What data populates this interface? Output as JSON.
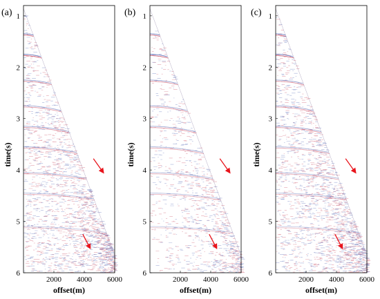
{
  "chart_data": [
    {
      "type": "seismic-section",
      "panel_label": "(a)",
      "xlabel": "offset(m)",
      "ylabel": "time(s)",
      "xlim": [
        0,
        6000
      ],
      "ylim": [
        6,
        0.8
      ],
      "xticks": [
        2000,
        4000,
        6000
      ],
      "yticks": [
        1,
        2,
        3,
        4,
        5,
        6
      ],
      "arrows": [
        {
          "from": [
            4600,
            3.78
          ],
          "to": [
            5250,
            4.05
          ],
          "color": "#e8141c"
        },
        {
          "from": [
            3900,
            5.25
          ],
          "to": [
            4380,
            5.52
          ],
          "color": "#e8141c"
        }
      ]
    },
    {
      "type": "seismic-section",
      "panel_label": "(b)",
      "xlabel": "offset(m)",
      "ylabel": "time(s)",
      "xlim": [
        0,
        6000
      ],
      "ylim": [
        6,
        0.8
      ],
      "xticks": [
        2000,
        4000,
        6000
      ],
      "yticks": [
        1,
        2,
        3,
        4,
        5,
        6
      ],
      "arrows": [
        {
          "from": [
            4600,
            3.78
          ],
          "to": [
            5250,
            4.05
          ],
          "color": "#e8141c"
        },
        {
          "from": [
            3900,
            5.25
          ],
          "to": [
            4380,
            5.52
          ],
          "color": "#e8141c"
        }
      ]
    },
    {
      "type": "seismic-section",
      "panel_label": "(c)",
      "xlabel": "offset(m)",
      "ylabel": "time(s)",
      "xlim": [
        0,
        6000
      ],
      "ylim": [
        6,
        0.8
      ],
      "xticks": [
        2000,
        4000,
        6000
      ],
      "yticks": [
        1,
        2,
        3,
        4,
        5,
        6
      ],
      "arrows": [
        {
          "from": [
            4600,
            3.78
          ],
          "to": [
            5250,
            4.05
          ],
          "color": "#e8141c"
        },
        {
          "from": [
            3900,
            5.25
          ],
          "to": [
            4380,
            5.52
          ],
          "color": "#e8141c"
        }
      ]
    }
  ],
  "colors": {
    "positive": "#c0304a",
    "negative": "#3a4fa8",
    "arrow": "#e8141c"
  }
}
